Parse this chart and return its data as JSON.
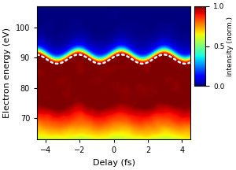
{
  "title": "",
  "xlabel": "Delay (fs)",
  "ylabel": "Electron energy (eV)",
  "xlim": [
    -4.5,
    4.5
  ],
  "ylim": [
    63,
    107
  ],
  "yticks": [
    70,
    80,
    90,
    100
  ],
  "xticks": [
    -4,
    -2,
    0,
    2,
    4
  ],
  "colorbar_label": "intensity (norm.)",
  "colorbar_ticks": [
    0,
    0.5,
    1
  ],
  "cmap": "jet",
  "cutoff_energy": 89.5,
  "cutoff_amplitude": 1.5,
  "cutoff_period": 2.5,
  "cutoff_phase": 0.5,
  "noise_seed": 42,
  "nx": 300,
  "ny": 200,
  "figsize": [
    3.0,
    2.16
  ],
  "dpi": 100
}
